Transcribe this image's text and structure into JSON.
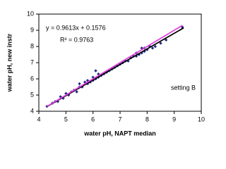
{
  "chart_data": {
    "type": "scatter",
    "x_label": "water pH, NAPT median",
    "y_label": "water pH, new instr",
    "annotations": [
      "y = 0.9613x + 0.1576",
      "R² = 0.9763",
      "setting B"
    ],
    "xlim": [
      4,
      10
    ],
    "xticks": [
      4,
      5,
      6,
      7,
      8,
      9,
      10
    ],
    "ylim": [
      4,
      10
    ],
    "yticks": [
      4,
      5,
      6,
      7,
      8,
      9,
      10
    ],
    "series": [
      {
        "color": "#1f2a80",
        "x": [
          4.3,
          4.5,
          4.6,
          4.7,
          4.8,
          4.9,
          5.0,
          5.1,
          5.2,
          5.3,
          5.4,
          5.5,
          5.5,
          5.6,
          5.7,
          5.8,
          5.8,
          5.9,
          6.0,
          6.0,
          6.1,
          6.1,
          6.2,
          6.2,
          6.3,
          6.4,
          6.5,
          6.6,
          6.7,
          6.8,
          6.9,
          7.0,
          7.1,
          7.2,
          7.3,
          7.4,
          7.5,
          7.6,
          7.6,
          7.7,
          7.8,
          7.8,
          7.9,
          7.9,
          8.0,
          8.1,
          8.2,
          8.3,
          8.5,
          8.7,
          9.3
        ],
        "values": [
          4.3,
          4.5,
          4.6,
          4.6,
          4.9,
          4.8,
          5.1,
          5.0,
          5.2,
          5.3,
          5.2,
          5.5,
          5.7,
          5.5,
          5.8,
          5.7,
          5.9,
          5.8,
          5.9,
          6.1,
          6.5,
          6.0,
          6.1,
          6.3,
          6.2,
          6.3,
          6.4,
          6.5,
          6.6,
          6.7,
          6.8,
          6.9,
          7.0,
          7.1,
          7.1,
          7.3,
          7.4,
          7.4,
          7.6,
          7.5,
          7.6,
          7.9,
          7.7,
          7.9,
          7.8,
          8.0,
          7.9,
          8.0,
          8.2,
          8.4,
          9.2
        ]
      }
    ],
    "lines": [
      {
        "color": "#000000",
        "x": [
          4.3,
          9.35
        ],
        "values": [
          4.29,
          9.15
        ]
      },
      {
        "color": "#e040e0",
        "x": [
          4.3,
          9.3
        ],
        "values": [
          4.3,
          9.3
        ]
      }
    ]
  }
}
